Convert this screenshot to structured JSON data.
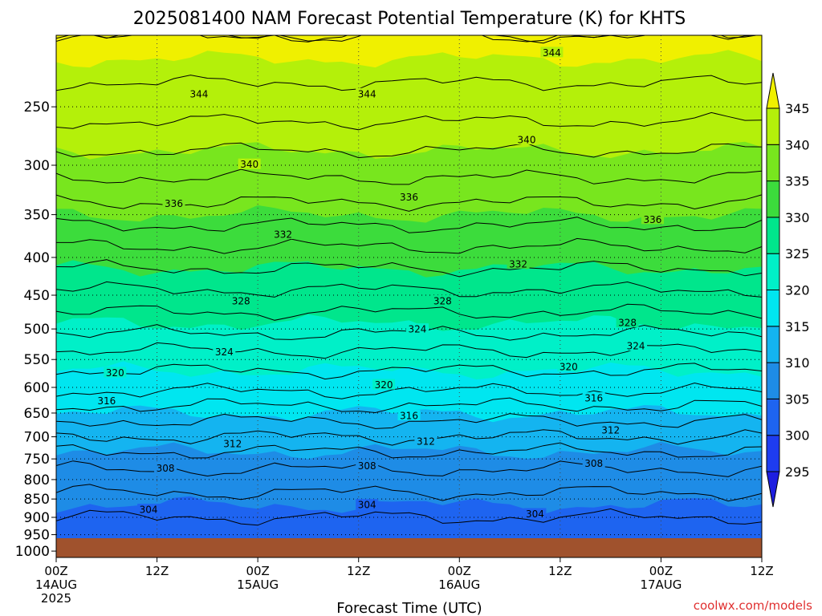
{
  "chart_data": {
    "type": "heatmap",
    "title": "2025081400 NAM Forecast Potential Temperature (K) for KHTS",
    "xlabel": "Forecast Time (UTC)",
    "ylabel": "",
    "credit": "coolwx.com/models",
    "colorbar_unit": "K",
    "x_ticks": [
      {
        "hour": 0,
        "label": "00Z",
        "sub": "14AUG",
        "sub2": "2025"
      },
      {
        "hour": 12,
        "label": "12Z",
        "sub": "",
        "sub2": ""
      },
      {
        "hour": 24,
        "label": "00Z",
        "sub": "15AUG",
        "sub2": ""
      },
      {
        "hour": 36,
        "label": "12Z",
        "sub": "",
        "sub2": ""
      },
      {
        "hour": 48,
        "label": "00Z",
        "sub": "16AUG",
        "sub2": ""
      },
      {
        "hour": 60,
        "label": "12Z",
        "sub": "",
        "sub2": ""
      },
      {
        "hour": 72,
        "label": "00Z",
        "sub": "17AUG",
        "sub2": ""
      },
      {
        "hour": 84,
        "label": "12Z",
        "sub": "",
        "sub2": ""
      }
    ],
    "x_range": [
      0,
      84
    ],
    "y_ticks": [
      250,
      300,
      350,
      400,
      450,
      500,
      550,
      600,
      650,
      700,
      750,
      800,
      850,
      900,
      950,
      1000
    ],
    "y_range_hpa": [
      200,
      1020
    ],
    "y_scale": "log-pressure (inverted)",
    "grid": true,
    "levels": [
      295,
      300,
      305,
      310,
      315,
      320,
      325,
      330,
      335,
      340,
      345
    ],
    "colors": [
      "#1e1ee0",
      "#1e3cf0",
      "#1e64f0",
      "#1e8ce6",
      "#14b4f0",
      "#00e6f0",
      "#00f0c8",
      "#00e68c",
      "#3cdc3c",
      "#78e61e",
      "#b4f00a",
      "#f0f000"
    ],
    "ground_color": "#a0522d",
    "theta_profile": [
      {
        "p": 1000,
        "theta": 302
      },
      {
        "p": 950,
        "theta": 303
      },
      {
        "p": 900,
        "theta": 304
      },
      {
        "p": 850,
        "theta": 305.5
      },
      {
        "p": 800,
        "theta": 307
      },
      {
        "p": 750,
        "theta": 309
      },
      {
        "p": 700,
        "theta": 312
      },
      {
        "p": 650,
        "theta": 315
      },
      {
        "p": 600,
        "theta": 318.5
      },
      {
        "p": 550,
        "theta": 321
      },
      {
        "p": 500,
        "theta": 324.5
      },
      {
        "p": 450,
        "theta": 327.5
      },
      {
        "p": 400,
        "theta": 331
      },
      {
        "p": 350,
        "theta": 335
      },
      {
        "p": 300,
        "theta": 339
      },
      {
        "p": 250,
        "theta": 343
      },
      {
        "p": 200,
        "theta": 346
      }
    ],
    "contour_labels": [
      {
        "text": "344",
        "hour": 17,
        "p": 240
      },
      {
        "text": "344",
        "hour": 37,
        "p": 240
      },
      {
        "text": "344",
        "hour": 59,
        "p": 211
      },
      {
        "text": "340",
        "hour": 23,
        "p": 299
      },
      {
        "text": "340",
        "hour": 56,
        "p": 277
      },
      {
        "text": "336",
        "hour": 14,
        "p": 338
      },
      {
        "text": "336",
        "hour": 42,
        "p": 331
      },
      {
        "text": "336",
        "hour": 71,
        "p": 355
      },
      {
        "text": "332",
        "hour": 27,
        "p": 372
      },
      {
        "text": "332",
        "hour": 55,
        "p": 408
      },
      {
        "text": "328",
        "hour": 22,
        "p": 458
      },
      {
        "text": "328",
        "hour": 46,
        "p": 458
      },
      {
        "text": "328",
        "hour": 68,
        "p": 490
      },
      {
        "text": "324",
        "hour": 20,
        "p": 537
      },
      {
        "text": "324",
        "hour": 43,
        "p": 500
      },
      {
        "text": "324",
        "hour": 69,
        "p": 527
      },
      {
        "text": "320",
        "hour": 7,
        "p": 573
      },
      {
        "text": "320",
        "hour": 39,
        "p": 595
      },
      {
        "text": "320",
        "hour": 61,
        "p": 562
      },
      {
        "text": "316",
        "hour": 6,
        "p": 625
      },
      {
        "text": "316",
        "hour": 42,
        "p": 655
      },
      {
        "text": "316",
        "hour": 64,
        "p": 620
      },
      {
        "text": "312",
        "hour": 21,
        "p": 715
      },
      {
        "text": "312",
        "hour": 44,
        "p": 710
      },
      {
        "text": "312",
        "hour": 66,
        "p": 685
      },
      {
        "text": "308",
        "hour": 13,
        "p": 772
      },
      {
        "text": "308",
        "hour": 37,
        "p": 766
      },
      {
        "text": "308",
        "hour": 64,
        "p": 760
      },
      {
        "text": "304",
        "hour": 11,
        "p": 878
      },
      {
        "text": "304",
        "hour": 37,
        "p": 865
      },
      {
        "text": "304",
        "hour": 57,
        "p": 890
      }
    ]
  }
}
